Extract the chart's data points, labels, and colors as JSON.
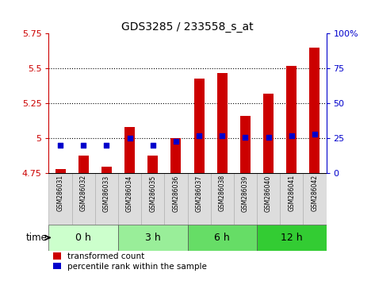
{
  "title": "GDS3285 / 233558_s_at",
  "samples": [
    "GSM286031",
    "GSM286032",
    "GSM286033",
    "GSM286034",
    "GSM286035",
    "GSM286036",
    "GSM286037",
    "GSM286038",
    "GSM286039",
    "GSM286040",
    "GSM286041",
    "GSM286042"
  ],
  "transformed_count": [
    4.78,
    4.88,
    4.8,
    5.08,
    4.88,
    5.0,
    5.43,
    5.47,
    5.16,
    5.32,
    5.52,
    5.65
  ],
  "percentile_rank": [
    20,
    20,
    20,
    25,
    20,
    23,
    27,
    27,
    26,
    26,
    27,
    28
  ],
  "bar_base": 4.75,
  "ylim_left": [
    4.75,
    5.75
  ],
  "ylim_right": [
    0,
    100
  ],
  "yticks_left": [
    4.75,
    5.0,
    5.25,
    5.5,
    5.75
  ],
  "ytick_labels_left": [
    "4.75",
    "5",
    "5.25",
    "5.5",
    "5.75"
  ],
  "yticks_right": [
    0,
    25,
    50,
    75,
    100
  ],
  "ytick_labels_right": [
    "0",
    "25",
    "50",
    "75",
    "100%"
  ],
  "dotted_lines": [
    5.0,
    5.25,
    5.5
  ],
  "bar_color": "#cc0000",
  "dot_color": "#0000cc",
  "group_labels": [
    "0 h",
    "3 h",
    "6 h",
    "12 h"
  ],
  "group_colors": [
    "#ccffcc",
    "#99ee99",
    "#66dd66",
    "#33cc33"
  ],
  "group_sizes": [
    3,
    3,
    3,
    3
  ],
  "sample_box_color": "#dddddd",
  "sample_box_edge": "#aaaaaa",
  "time_label": "time",
  "legend_red": "transformed count",
  "legend_blue": "percentile rank within the sample",
  "left_tick_color": "#cc0000",
  "right_tick_color": "#0000cc",
  "left_spine_color": "#cc0000",
  "right_spine_color": "#0000cc"
}
